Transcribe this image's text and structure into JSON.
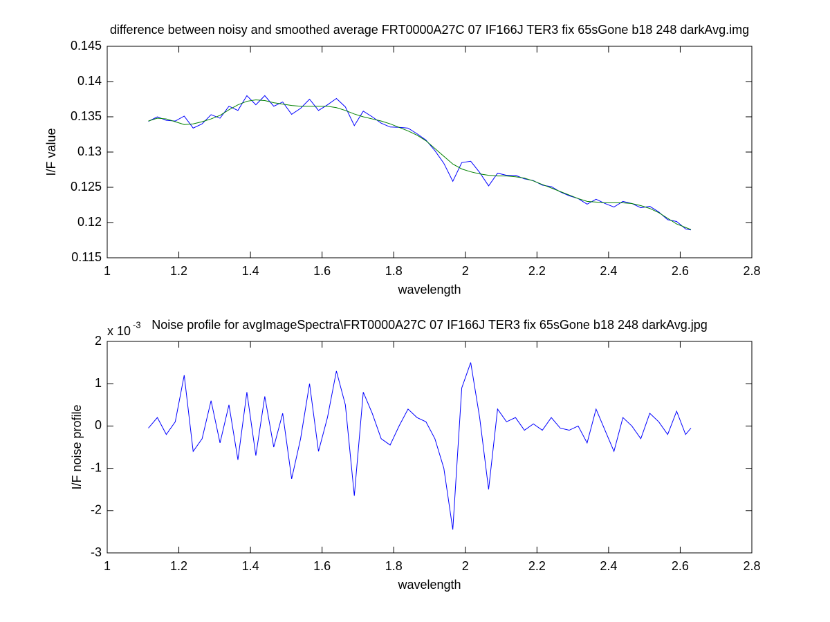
{
  "chart_data": [
    {
      "type": "line",
      "title": "difference between noisy and smoothed average FRT0000A27C 07 IF166J TER3 fix 65sGone b18 248 darkAvg.img",
      "xlabel": "wavelength",
      "ylabel": "I/F value",
      "xlim": [
        1,
        2.8
      ],
      "xticks": [
        1,
        1.2,
        1.4,
        1.6,
        1.8,
        2,
        2.2,
        2.4,
        2.6,
        2.8
      ],
      "ylim": [
        0.115,
        0.145
      ],
      "yticks": [
        0.115,
        0.12,
        0.125,
        0.13,
        0.135,
        0.14,
        0.145
      ],
      "x": [
        1.115,
        1.14,
        1.165,
        1.19,
        1.215,
        1.24,
        1.265,
        1.29,
        1.315,
        1.34,
        1.365,
        1.39,
        1.415,
        1.44,
        1.465,
        1.49,
        1.515,
        1.54,
        1.565,
        1.59,
        1.615,
        1.64,
        1.665,
        1.69,
        1.715,
        1.74,
        1.765,
        1.79,
        1.815,
        1.84,
        1.865,
        1.89,
        1.915,
        1.94,
        1.965,
        1.99,
        2.015,
        2.04,
        2.065,
        2.09,
        2.115,
        2.14,
        2.165,
        2.19,
        2.215,
        2.24,
        2.265,
        2.29,
        2.315,
        2.34,
        2.365,
        2.39,
        2.415,
        2.44,
        2.465,
        2.49,
        2.515,
        2.54,
        2.565,
        2.59,
        2.615,
        2.63
      ],
      "series": [
        {
          "color": "#0000ff",
          "values": [
            0.13435,
            0.135,
            0.1345,
            0.1344,
            0.1351,
            0.1334,
            0.134,
            0.1353,
            0.1348,
            0.1365,
            0.1359,
            0.138,
            0.1367,
            0.138,
            0.1365,
            0.1371,
            0.13535,
            0.1362,
            0.1375,
            0.1359,
            0.1367,
            0.1376,
            0.1364,
            0.13375,
            0.1358,
            0.135,
            0.1341,
            0.13355,
            0.1335,
            0.1334,
            0.1326,
            0.1317,
            0.1302,
            0.1284,
            0.12585,
            0.1285,
            0.1287,
            0.1271,
            0.1252,
            0.127,
            0.1267,
            0.1267,
            0.1262,
            0.12595,
            0.1253,
            0.1251,
            0.12435,
            0.1238,
            0.1234,
            0.1226,
            0.1233,
            0.1227,
            0.1222,
            0.123,
            0.1227,
            0.1221,
            0.1223,
            0.1215,
            0.1204,
            0.12015,
            0.1191,
            0.11895
          ]
        },
        {
          "color": "#008000",
          "values": [
            0.1344,
            0.1348,
            0.1347,
            0.1343,
            0.1339,
            0.134,
            0.1343,
            0.1347,
            0.1352,
            0.136,
            0.1367,
            0.1372,
            0.1374,
            0.1373,
            0.137,
            0.1368,
            0.1366,
            0.1365,
            0.1365,
            0.1365,
            0.1365,
            0.1363,
            0.1359,
            0.1354,
            0.135,
            0.1347,
            0.1344,
            0.134,
            0.1335,
            0.133,
            0.1324,
            0.1316,
            0.1305,
            0.1294,
            0.1283,
            0.1276,
            0.1272,
            0.1269,
            0.1267,
            0.1266,
            0.1266,
            0.1265,
            0.1263,
            0.1259,
            0.1254,
            0.1249,
            0.1244,
            0.1239,
            0.1234,
            0.123,
            0.1229,
            0.1228,
            0.1228,
            0.1228,
            0.1227,
            0.1224,
            0.122,
            0.1214,
            0.1206,
            0.1198,
            0.1193,
            0.119
          ]
        }
      ]
    },
    {
      "type": "line",
      "title": "Noise profile for avgImageSpectra\\FRT0000A27C 07 IF166J TER3 fix 65sGone b18 248 darkAvg.jpg",
      "xlabel": "wavelength",
      "ylabel": "I/F noise profile",
      "y_multiplier": {
        "base": "x 10",
        "exponent": "-3"
      },
      "xlim": [
        1,
        2.8
      ],
      "xticks": [
        1,
        1.2,
        1.4,
        1.6,
        1.8,
        2,
        2.2,
        2.4,
        2.6,
        2.8
      ],
      "ylim": [
        -3,
        2
      ],
      "yticks": [
        -3,
        -2,
        -1,
        0,
        1,
        2
      ],
      "x": [
        1.115,
        1.14,
        1.165,
        1.19,
        1.215,
        1.24,
        1.265,
        1.29,
        1.315,
        1.34,
        1.365,
        1.39,
        1.415,
        1.44,
        1.465,
        1.49,
        1.515,
        1.54,
        1.565,
        1.59,
        1.615,
        1.64,
        1.665,
        1.69,
        1.715,
        1.74,
        1.765,
        1.79,
        1.815,
        1.84,
        1.865,
        1.89,
        1.915,
        1.94,
        1.965,
        1.99,
        2.015,
        2.04,
        2.065,
        2.09,
        2.115,
        2.14,
        2.165,
        2.19,
        2.215,
        2.24,
        2.265,
        2.29,
        2.315,
        2.34,
        2.365,
        2.39,
        2.415,
        2.44,
        2.465,
        2.49,
        2.515,
        2.54,
        2.565,
        2.59,
        2.615,
        2.63
      ],
      "series": [
        {
          "color": "#0000ff",
          "values": [
            -0.05,
            0.2,
            -0.2,
            0.1,
            1.2,
            -0.6,
            -0.3,
            0.6,
            -0.4,
            0.5,
            -0.8,
            0.8,
            -0.7,
            0.7,
            -0.5,
            0.3,
            -1.25,
            -0.3,
            1.0,
            -0.6,
            0.2,
            1.3,
            0.5,
            -1.65,
            0.8,
            0.3,
            -0.3,
            -0.45,
            0.0,
            0.4,
            0.2,
            0.1,
            -0.3,
            -1.0,
            -2.45,
            0.9,
            1.5,
            0.2,
            -1.5,
            0.4,
            0.1,
            0.2,
            -0.1,
            0.05,
            -0.1,
            0.2,
            -0.05,
            -0.1,
            0.0,
            -0.4,
            0.4,
            -0.1,
            -0.6,
            0.2,
            0.0,
            -0.3,
            0.3,
            0.1,
            -0.2,
            0.35,
            -0.2,
            -0.05
          ]
        }
      ]
    }
  ]
}
